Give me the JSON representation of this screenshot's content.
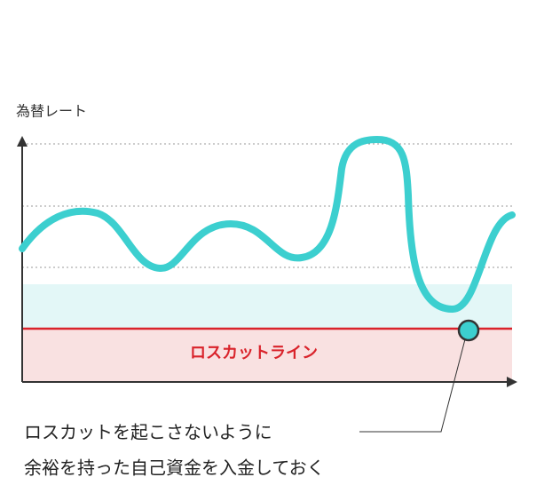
{
  "axis_label": "為替レート",
  "loss_cut_label": "ロスカットライン",
  "note": {
    "line1": "ロスカットを起こさないように",
    "line2": "余裕を持った自己資金を入金しておく"
  }
}
